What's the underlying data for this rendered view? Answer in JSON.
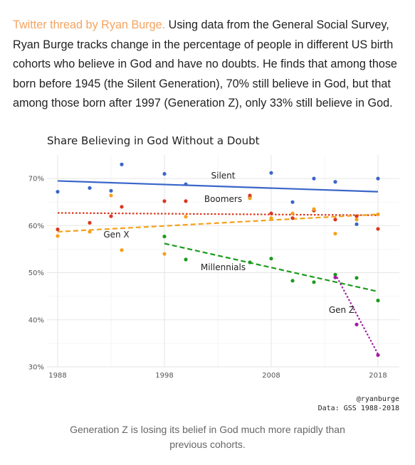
{
  "intro": {
    "source_link": "Twitter thread by Ryan Burge.",
    "text": " Using data from the General Social Survey, Ryan Burge tracks change in the percentage of people in different US birth cohorts who believe in God and have no doubts. He finds that among those born before 1945 (the Silent Generation), 70% still believe in God, but that among those born after 1997 (Generation Z), only 33% still believe in God."
  },
  "caption": {
    "line1": "Generation Z is losing its belief in God much more rapidly than",
    "line2": "previous cohorts."
  },
  "colors": {
    "Silent": "#3a66c9",
    "Boomers": "#d9391e",
    "Gen X": "#f5a11c",
    "Millennials": "#1c9b1c",
    "Gen Z": "#a020a0",
    "source_link": "#f4a460"
  },
  "chart_data": {
    "type": "scatter",
    "title": "Share Believing in God Without a Doubt",
    "xlabel": "",
    "ylabel": "",
    "xlim": [
      1987,
      2020
    ],
    "ylim": [
      30,
      75
    ],
    "x_ticks": [
      1988,
      1998,
      2008,
      2018
    ],
    "y_ticks": [
      30,
      40,
      50,
      60,
      70
    ],
    "y_tick_labels": [
      "30%",
      "40%",
      "50%",
      "60%",
      "70%"
    ],
    "grid": true,
    "credit": "@ryanburge",
    "source": "Data: GSS 1988-2018",
    "series": [
      {
        "name": "Silent",
        "color": "#3a66c9",
        "trend_style": "solid",
        "points": [
          [
            1988,
            67.2
          ],
          [
            1991,
            68.0
          ],
          [
            1993,
            67.4
          ],
          [
            1994,
            73.0
          ],
          [
            1998,
            71.0
          ],
          [
            2000,
            68.8
          ],
          [
            2006,
            66.0
          ],
          [
            2008,
            71.2
          ],
          [
            2010,
            65.0
          ],
          [
            2012,
            70.0
          ],
          [
            2014,
            69.3
          ],
          [
            2016,
            60.3
          ],
          [
            2018,
            70.0
          ]
        ],
        "trend": [
          [
            1988,
            69.5
          ],
          [
            2018,
            67.2
          ]
        ]
      },
      {
        "name": "Boomers",
        "color": "#d9391e",
        "trend_style": "dotted",
        "points": [
          [
            1988,
            59.2
          ],
          [
            1991,
            60.6
          ],
          [
            1993,
            62.0
          ],
          [
            1994,
            64.0
          ],
          [
            1998,
            65.2
          ],
          [
            2000,
            65.2
          ],
          [
            2006,
            66.4
          ],
          [
            2008,
            62.6
          ],
          [
            2010,
            61.6
          ],
          [
            2012,
            63.2
          ],
          [
            2014,
            61.3
          ],
          [
            2016,
            62.0
          ],
          [
            2018,
            59.3
          ]
        ],
        "trend": [
          [
            1988,
            62.7
          ],
          [
            2018,
            62.2
          ]
        ]
      },
      {
        "name": "Gen X",
        "color": "#f5a11c",
        "trend_style": "dashed",
        "points": [
          [
            1988,
            57.8
          ],
          [
            1991,
            58.7
          ],
          [
            1993,
            66.4
          ],
          [
            1994,
            54.8
          ],
          [
            1998,
            54.0
          ],
          [
            2000,
            61.9
          ],
          [
            2006,
            65.8
          ],
          [
            2008,
            61.6
          ],
          [
            2010,
            62.6
          ],
          [
            2012,
            63.5
          ],
          [
            2014,
            58.3
          ],
          [
            2016,
            61.3
          ],
          [
            2018,
            62.4
          ]
        ],
        "trend": [
          [
            1988,
            58.7
          ],
          [
            2018,
            62.4
          ]
        ]
      },
      {
        "name": "Millennials",
        "color": "#1c9b1c",
        "trend_style": "dashed",
        "points": [
          [
            1998,
            57.7
          ],
          [
            2000,
            52.8
          ],
          [
            2006,
            52.2
          ],
          [
            2008,
            53.0
          ],
          [
            2010,
            48.3
          ],
          [
            2012,
            48.0
          ],
          [
            2014,
            49.6
          ],
          [
            2016,
            48.9
          ],
          [
            2018,
            44.1
          ]
        ],
        "trend": [
          [
            1998,
            56.2
          ],
          [
            2018,
            46.0
          ]
        ]
      },
      {
        "name": "Gen Z",
        "color": "#a020a0",
        "trend_style": "dotted",
        "points": [
          [
            2014,
            49.0
          ],
          [
            2016,
            39.0
          ],
          [
            2018,
            32.5
          ]
        ],
        "trend": [
          [
            2014,
            49.7
          ],
          [
            2018,
            32.7
          ]
        ]
      }
    ],
    "series_labels": [
      {
        "text": "Silent",
        "x": 2003.5,
        "y": 70.0
      },
      {
        "text": "Boomers",
        "x": 2003.5,
        "y": 65.0
      },
      {
        "text": "Gen X",
        "x": 1993.5,
        "y": 57.5
      },
      {
        "text": "Millennials",
        "x": 2003.5,
        "y": 50.5
      },
      {
        "text": "Gen Z",
        "x": 2014.6,
        "y": 41.5
      }
    ]
  }
}
